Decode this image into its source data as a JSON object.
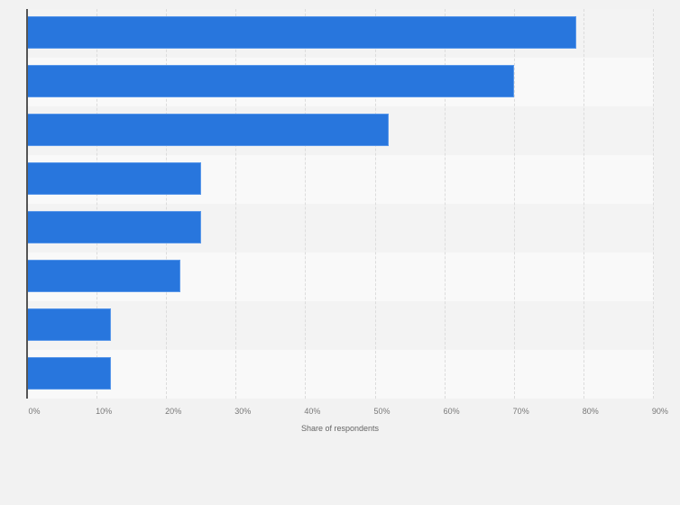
{
  "chart_data": {
    "type": "bar",
    "orientation": "horizontal",
    "title": "",
    "categories": [
      "",
      "",
      "",
      "",
      "",
      "",
      "",
      ""
    ],
    "values": [
      79,
      70,
      52,
      25,
      25,
      22,
      12,
      12
    ],
    "xlabel": "Share of respondents",
    "ylabel": "",
    "xlim": [
      0,
      90
    ],
    "xticks": [
      "0%",
      "10%",
      "20%",
      "30%",
      "40%",
      "50%",
      "60%",
      "70%",
      "80%",
      "90%"
    ],
    "grid": true,
    "legend": null,
    "bar_color": "#2876dd"
  },
  "axis": {
    "xlabel": "Share of respondents"
  }
}
